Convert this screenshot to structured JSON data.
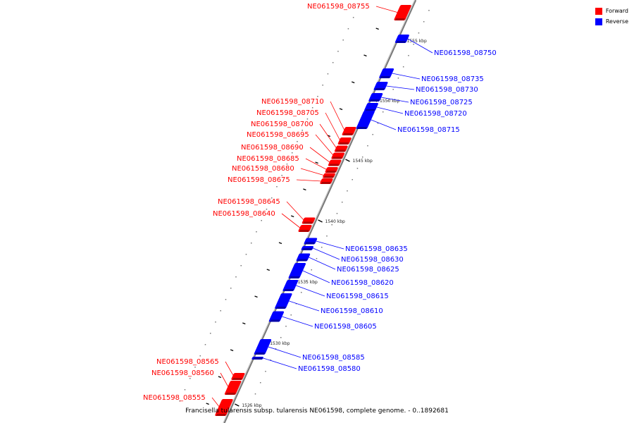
{
  "caption": "Francisella tularensis subsp. tularensis NE061598, complete genome. - 0..1892681",
  "legend": [
    {
      "label": "Forward",
      "color": "#ff0000"
    },
    {
      "label": "Reverse",
      "color": "#0000ff"
    }
  ],
  "colors": {
    "forward": "#ff0000",
    "reverse": "#0000ff",
    "backbone": "#888888"
  },
  "ticks": [
    "1525 kbp",
    "1530 kbp",
    "1535 kbp",
    "1540 kbp",
    "1545 kbp",
    "1550 kbp",
    "1555 kbp"
  ],
  "genes": [
    {
      "name": "NE061598_08755",
      "strand": "forward"
    },
    {
      "name": "NE061598_08750",
      "strand": "reverse"
    },
    {
      "name": "NE061598_08735",
      "strand": "reverse"
    },
    {
      "name": "NE061598_08730",
      "strand": "reverse"
    },
    {
      "name": "NE061598_08725",
      "strand": "reverse"
    },
    {
      "name": "NE061598_08720",
      "strand": "reverse"
    },
    {
      "name": "NE061598_08715",
      "strand": "reverse"
    },
    {
      "name": "NE061598_08710",
      "strand": "forward"
    },
    {
      "name": "NE061598_08705",
      "strand": "forward"
    },
    {
      "name": "NE061598_08700",
      "strand": "forward"
    },
    {
      "name": "NE061598_08695",
      "strand": "forward"
    },
    {
      "name": "NE061598_08690",
      "strand": "forward"
    },
    {
      "name": "NE061598_08685",
      "strand": "forward"
    },
    {
      "name": "NE061598_08680",
      "strand": "forward"
    },
    {
      "name": "NE061598_08675",
      "strand": "forward"
    },
    {
      "name": "NE061598_08645",
      "strand": "forward"
    },
    {
      "name": "NE061598_08640",
      "strand": "forward"
    },
    {
      "name": "NE061598_08635",
      "strand": "reverse"
    },
    {
      "name": "NE061598_08630",
      "strand": "reverse"
    },
    {
      "name": "NE061598_08625",
      "strand": "reverse"
    },
    {
      "name": "NE061598_08620",
      "strand": "reverse"
    },
    {
      "name": "NE061598_08615",
      "strand": "reverse"
    },
    {
      "name": "NE061598_08610",
      "strand": "reverse"
    },
    {
      "name": "NE061598_08605",
      "strand": "reverse"
    },
    {
      "name": "NE061598_08585",
      "strand": "reverse"
    },
    {
      "name": "NE061598_08580",
      "strand": "reverse"
    },
    {
      "name": "NE061598_08565",
      "strand": "forward"
    },
    {
      "name": "NE061598_08560",
      "strand": "forward"
    },
    {
      "name": "NE061598_08555",
      "strand": "forward"
    }
  ]
}
